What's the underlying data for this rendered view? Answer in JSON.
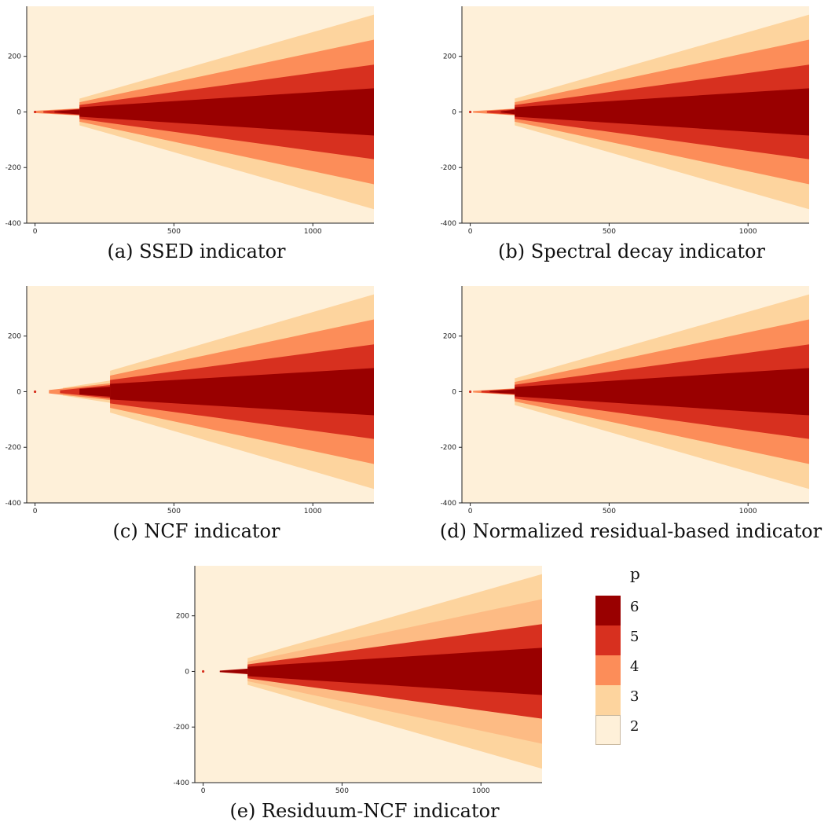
{
  "colors": {
    "p2": "#fef0d9",
    "p3": "#fdd49e",
    "p4": "#fc8d59",
    "p5": "#d7301f",
    "p6": "#990000",
    "p4_panel_e": "#fdbb84"
  },
  "chart_data": [
    {
      "type": "heatmap",
      "caption": "(a) SSED indicator",
      "xlim": [
        -30,
        1220
      ],
      "ylim": [
        -400,
        380
      ],
      "xticks": [
        0,
        500,
        1000
      ],
      "yticks": [
        200,
        0,
        -200,
        -400
      ],
      "xtick_labels": [
        "0",
        "500",
        "1000"
      ],
      "ytick_labels": [
        "200",
        "0",
        "-200",
        "-400"
      ],
      "background_p": 2,
      "wedges": [
        {
          "p": 3,
          "x_start": 160,
          "half_width_start": 48,
          "x_end": 1220,
          "half_width_end": 350
        },
        {
          "p": 4,
          "x_start": 160,
          "half_width_start": 35,
          "x_end": 1220,
          "half_width_end": 260
        },
        {
          "p": 5,
          "x_start": 160,
          "half_width_start": 25,
          "x_end": 1220,
          "half_width_end": 170
        },
        {
          "p": 6,
          "x_start": 160,
          "half_width_start": 17,
          "x_end": 1220,
          "half_width_end": 85
        }
      ],
      "near_field": [
        {
          "p": 4,
          "x_start": 0,
          "x_end": 160,
          "half_width_start": 4,
          "half_width_end": 13
        },
        {
          "p": 5,
          "x_start": 30,
          "x_end": 160,
          "half_width_start": 3,
          "half_width_end": 11
        },
        {
          "p": 6,
          "x_start": 70,
          "x_end": 160,
          "half_width_start": 2,
          "half_width_end": 9
        }
      ]
    },
    {
      "type": "heatmap",
      "caption": "(b) Spectral decay indicator",
      "xlim": [
        -30,
        1220
      ],
      "ylim": [
        -400,
        380
      ],
      "xticks": [
        0,
        500,
        1000
      ],
      "yticks": [
        200,
        0,
        -200,
        -400
      ],
      "xtick_labels": [
        "0",
        "500",
        "1000"
      ],
      "ytick_labels": [
        "200",
        "0",
        "-200",
        "-400"
      ],
      "background_p": 2,
      "wedges": [
        {
          "p": 3,
          "x_start": 160,
          "half_width_start": 48,
          "x_end": 1220,
          "half_width_end": 350
        },
        {
          "p": 4,
          "x_start": 160,
          "half_width_start": 35,
          "x_end": 1220,
          "half_width_end": 260
        },
        {
          "p": 5,
          "x_start": 160,
          "half_width_start": 25,
          "x_end": 1220,
          "half_width_end": 170
        },
        {
          "p": 6,
          "x_start": 160,
          "half_width_start": 17,
          "x_end": 1220,
          "half_width_end": 85
        }
      ],
      "near_field": [
        {
          "p": 4,
          "x_start": 10,
          "x_end": 160,
          "half_width_start": 3,
          "half_width_end": 12
        },
        {
          "p": 5,
          "x_start": 60,
          "x_end": 160,
          "half_width_start": 3,
          "half_width_end": 10
        },
        {
          "p": 6,
          "x_start": 110,
          "x_end": 160,
          "half_width_start": 2,
          "half_width_end": 8
        }
      ]
    },
    {
      "type": "heatmap",
      "caption": "(c) NCF indicator",
      "xlim": [
        -30,
        1220
      ],
      "ylim": [
        -400,
        380
      ],
      "xticks": [
        0,
        500,
        1000
      ],
      "yticks": [
        200,
        0,
        -200,
        -400
      ],
      "xtick_labels": [
        "0",
        "500",
        "1000"
      ],
      "ytick_labels": [
        "200",
        "0",
        "-200",
        "-400"
      ],
      "background_p": 2,
      "wedges": [
        {
          "p": 3,
          "x_start": 270,
          "half_width_start": 75,
          "x_end": 1220,
          "half_width_end": 350
        },
        {
          "p": 4,
          "x_start": 270,
          "half_width_start": 58,
          "x_end": 1220,
          "half_width_end": 260
        },
        {
          "p": 5,
          "x_start": 270,
          "half_width_start": 42,
          "x_end": 1220,
          "half_width_end": 170
        },
        {
          "p": 6,
          "x_start": 270,
          "half_width_start": 28,
          "x_end": 1220,
          "half_width_end": 85
        }
      ],
      "near_field": [
        {
          "p": 3,
          "x_start": 100,
          "x_end": 270,
          "half_width_start": 14,
          "half_width_end": 40
        },
        {
          "p": 4,
          "x_start": 50,
          "x_end": 270,
          "half_width_start": 6,
          "half_width_end": 30
        },
        {
          "p": 5,
          "x_start": 90,
          "x_end": 270,
          "half_width_start": 5,
          "half_width_end": 24
        },
        {
          "p": 6,
          "x_start": 160,
          "x_end": 270,
          "half_width_start": 10,
          "half_width_end": 18
        }
      ]
    },
    {
      "type": "heatmap",
      "caption": "(d) Normalized residual-based indicator",
      "xlim": [
        -30,
        1220
      ],
      "ylim": [
        -400,
        380
      ],
      "xticks": [
        0,
        500,
        1000
      ],
      "yticks": [
        200,
        0,
        -200,
        -400
      ],
      "xtick_labels": [
        "0",
        "500",
        "1000"
      ],
      "ytick_labels": [
        "200",
        "0",
        "-200",
        "-400"
      ],
      "background_p": 2,
      "wedges": [
        {
          "p": 3,
          "x_start": 160,
          "half_width_start": 48,
          "x_end": 1220,
          "half_width_end": 350
        },
        {
          "p": 4,
          "x_start": 160,
          "half_width_start": 35,
          "x_end": 1220,
          "half_width_end": 260
        },
        {
          "p": 5,
          "x_start": 160,
          "half_width_start": 25,
          "x_end": 1220,
          "half_width_end": 170
        },
        {
          "p": 6,
          "x_start": 160,
          "half_width_start": 17,
          "x_end": 1220,
          "half_width_end": 85
        }
      ],
      "near_field": [
        {
          "p": 4,
          "x_start": 10,
          "x_end": 160,
          "half_width_start": 3,
          "half_width_end": 12
        },
        {
          "p": 5,
          "x_start": 40,
          "x_end": 160,
          "half_width_start": 3,
          "half_width_end": 10
        },
        {
          "p": 6,
          "x_start": 70,
          "x_end": 160,
          "half_width_start": 2,
          "half_width_end": 8
        }
      ]
    },
    {
      "type": "heatmap",
      "caption": "(e) Residuum-NCF indicator",
      "xlim": [
        -30,
        1220
      ],
      "ylim": [
        -400,
        380
      ],
      "xticks": [
        0,
        500,
        1000
      ],
      "yticks": [
        200,
        0,
        -200,
        -400
      ],
      "xtick_labels": [
        "0",
        "500",
        "1000"
      ],
      "ytick_labels": [
        "200",
        "0",
        "-200",
        "-400"
      ],
      "background_p": 2,
      "wedges": [
        {
          "p": 3,
          "x_start": 160,
          "half_width_start": 48,
          "x_end": 1220,
          "half_width_end": 350
        },
        {
          "p": 4,
          "x_start": 160,
          "half_width_start": 35,
          "x_end": 1220,
          "half_width_end": 260
        },
        {
          "p": 5,
          "x_start": 160,
          "half_width_start": 25,
          "x_end": 1220,
          "half_width_end": 170
        },
        {
          "p": 6,
          "x_start": 160,
          "half_width_start": 17,
          "x_end": 1220,
          "half_width_end": 85
        }
      ],
      "near_field": [
        {
          "p": 5,
          "x_start": 60,
          "x_end": 160,
          "half_width_start": 3,
          "half_width_end": 10
        },
        {
          "p": 6,
          "x_start": 60,
          "x_end": 160,
          "half_width_start": 2,
          "half_width_end": 9
        }
      ]
    }
  ],
  "legend": {
    "title": "p",
    "entries": [
      {
        "label": "6",
        "p": 6
      },
      {
        "label": "5",
        "p": 5
      },
      {
        "label": "4",
        "p": 4
      },
      {
        "label": "3",
        "p": 3
      },
      {
        "label": "2",
        "p": 2
      }
    ]
  }
}
